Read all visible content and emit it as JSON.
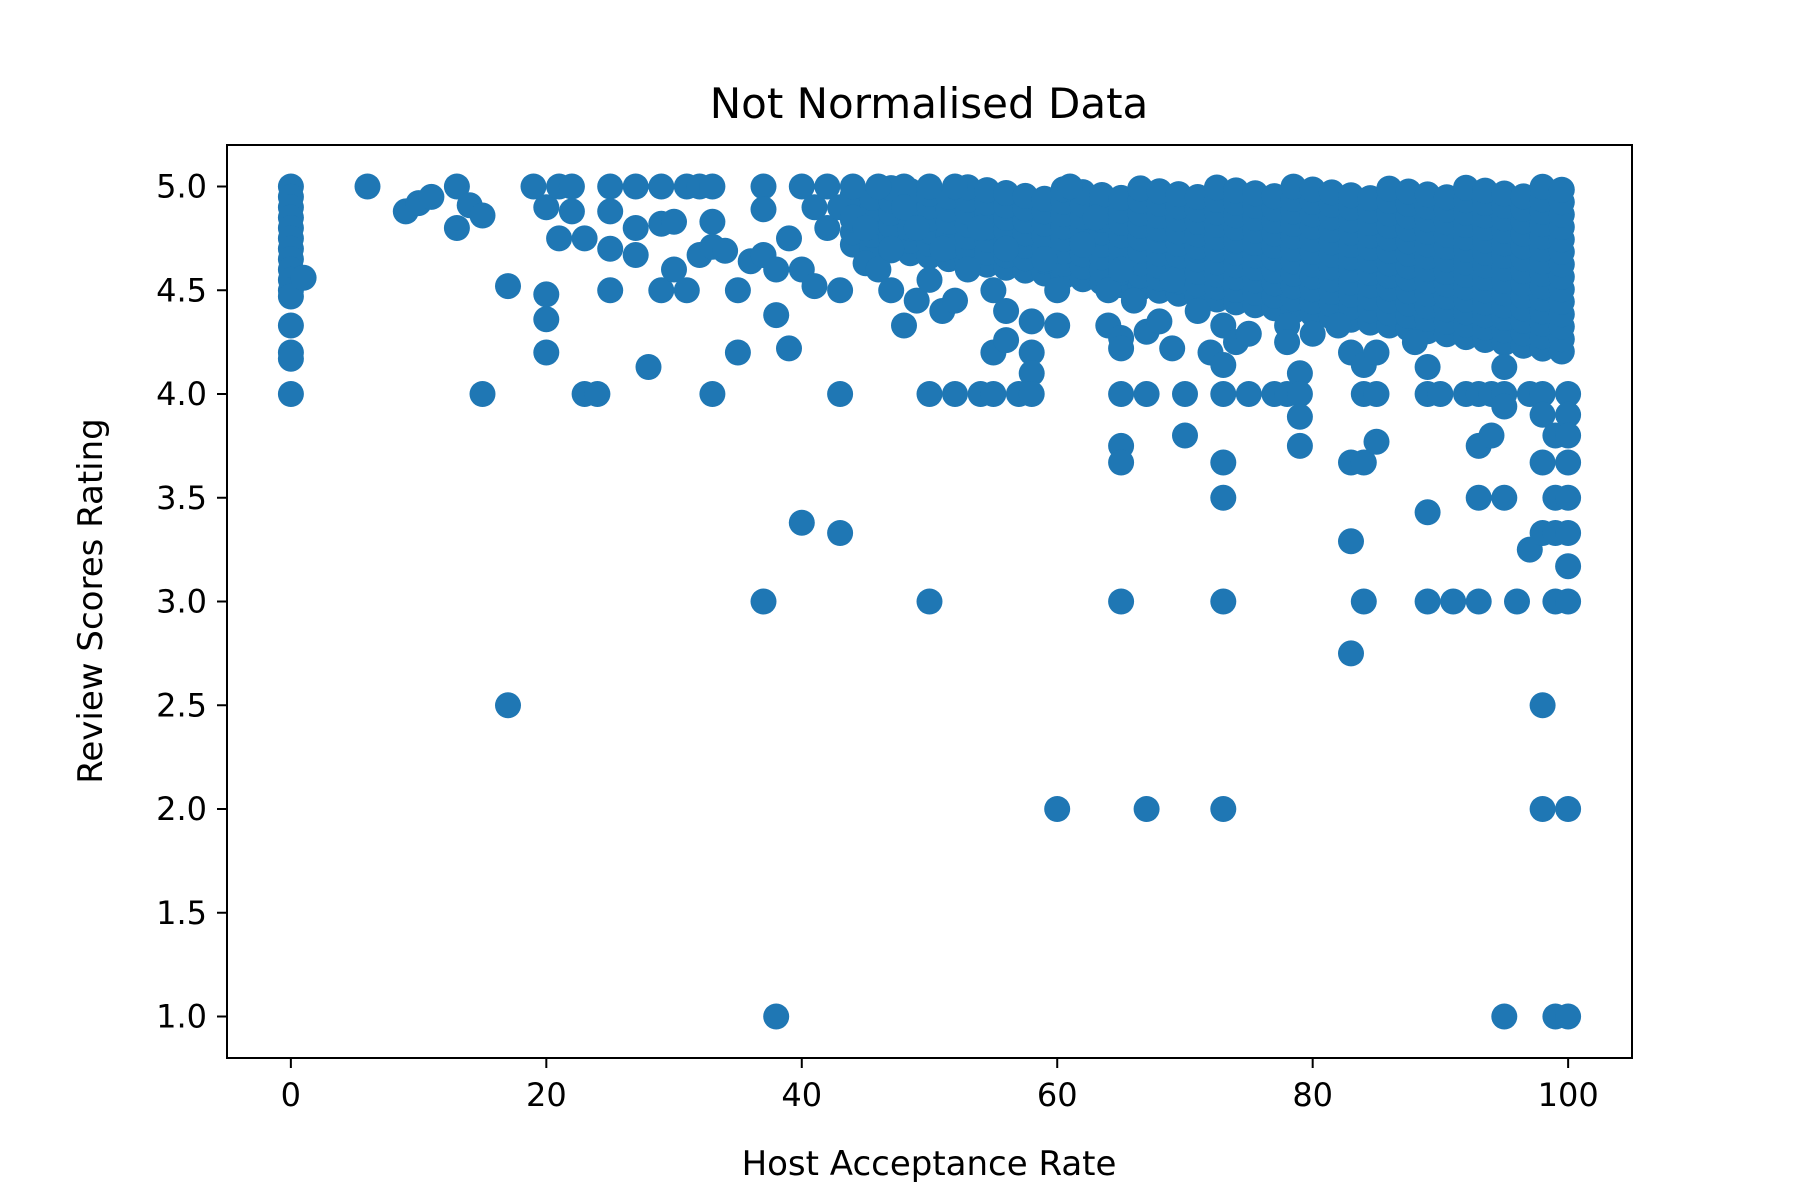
{
  "chart_data": {
    "type": "scatter",
    "title": "Not Normalised Data",
    "xlabel": "Host Acceptance Rate",
    "ylabel": "Review Scores Rating",
    "xlim": [
      -5,
      105
    ],
    "ylim": [
      0.8,
      5.2
    ],
    "xticks": [
      0,
      20,
      40,
      60,
      80,
      100
    ],
    "xtick_labels": [
      "0",
      "20",
      "40",
      "60",
      "80",
      "100"
    ],
    "yticks": [
      1.0,
      1.5,
      2.0,
      2.5,
      3.0,
      3.5,
      4.0,
      4.5,
      5.0
    ],
    "ytick_labels": [
      "1.0",
      "1.5",
      "2.0",
      "2.5",
      "3.0",
      "3.5",
      "4.0",
      "4.5",
      "5.0"
    ],
    "grid": false,
    "legend": "none",
    "marker_color": "#1f77b4",
    "series": [
      {
        "points": [
          [
            0,
            5.0
          ],
          [
            0,
            4.95
          ],
          [
            0,
            4.9
          ],
          [
            0,
            4.85
          ],
          [
            0,
            4.8
          ],
          [
            0,
            4.75
          ],
          [
            0,
            4.7
          ],
          [
            0,
            4.65
          ],
          [
            0,
            4.6
          ],
          [
            0,
            4.55
          ],
          [
            0,
            4.5
          ],
          [
            0,
            4.47
          ],
          [
            0,
            4.33
          ],
          [
            0,
            4.2
          ],
          [
            0,
            4.17
          ],
          [
            0,
            4.0
          ],
          [
            1,
            4.56
          ],
          [
            6,
            5.0
          ],
          [
            9,
            4.88
          ],
          [
            10,
            4.92
          ],
          [
            11,
            4.95
          ],
          [
            13,
            5.0
          ],
          [
            13,
            4.8
          ],
          [
            14,
            4.91
          ],
          [
            15,
            4.86
          ],
          [
            15,
            4.0
          ],
          [
            17,
            4.52
          ],
          [
            17,
            2.5
          ],
          [
            19,
            5.0
          ],
          [
            20,
            4.9
          ],
          [
            20,
            4.48
          ],
          [
            20,
            4.36
          ],
          [
            20,
            4.2
          ],
          [
            21,
            5.0
          ],
          [
            21,
            4.75
          ],
          [
            22,
            5.0
          ],
          [
            22,
            4.88
          ],
          [
            23,
            4.75
          ],
          [
            23,
            4.0
          ],
          [
            24,
            4.0
          ],
          [
            25,
            5.0
          ],
          [
            25,
            4.88
          ],
          [
            25,
            4.7
          ],
          [
            25,
            4.5
          ],
          [
            27,
            5.0
          ],
          [
            27,
            4.8
          ],
          [
            27,
            4.67
          ],
          [
            28,
            4.13
          ],
          [
            29,
            5.0
          ],
          [
            29,
            4.82
          ],
          [
            29,
            4.5
          ],
          [
            30,
            4.6
          ],
          [
            30,
            4.83
          ],
          [
            31,
            5.0
          ],
          [
            31,
            4.5
          ],
          [
            32,
            5.0
          ],
          [
            32,
            4.67
          ],
          [
            33,
            5.0
          ],
          [
            33,
            4.83
          ],
          [
            33,
            4.71
          ],
          [
            33,
            4.0
          ],
          [
            34,
            4.69
          ],
          [
            35,
            4.5
          ],
          [
            35,
            4.2
          ],
          [
            36,
            4.64
          ],
          [
            37,
            5.0
          ],
          [
            37,
            4.89
          ],
          [
            37,
            4.67
          ],
          [
            37,
            3.0
          ],
          [
            38,
            4.6
          ],
          [
            38,
            4.38
          ],
          [
            38,
            1.0
          ],
          [
            39,
            4.75
          ],
          [
            39,
            4.22
          ],
          [
            40,
            5.0
          ],
          [
            40,
            4.6
          ],
          [
            40,
            3.38
          ],
          [
            41,
            4.9
          ],
          [
            41,
            4.52
          ],
          [
            42,
            5.0
          ],
          [
            42,
            4.8
          ],
          [
            43,
            4.9
          ],
          [
            43,
            4.5
          ],
          [
            43,
            4.0
          ],
          [
            43,
            3.33
          ],
          [
            44,
            5.0
          ],
          [
            44,
            4.85
          ],
          [
            45,
            4.63
          ],
          [
            45,
            4.8
          ],
          [
            46,
            5.0
          ],
          [
            46,
            4.6
          ],
          [
            47,
            4.7
          ],
          [
            47,
            4.5
          ],
          [
            48,
            5.0
          ],
          [
            48,
            4.9
          ],
          [
            48,
            4.33
          ],
          [
            49,
            4.45
          ],
          [
            49,
            4.8
          ],
          [
            50,
            5.0
          ],
          [
            50,
            4.55
          ],
          [
            50,
            4.0
          ],
          [
            50,
            3.0
          ],
          [
            51,
            4.4
          ],
          [
            51,
            4.7
          ],
          [
            52,
            5.0
          ],
          [
            52,
            4.45
          ],
          [
            52,
            4.0
          ],
          [
            53,
            4.6
          ],
          [
            54,
            4.0
          ],
          [
            54,
            4.8
          ],
          [
            55,
            4.5
          ],
          [
            55,
            4.2
          ],
          [
            55,
            4.0
          ],
          [
            56,
            4.4
          ],
          [
            56,
            4.26
          ],
          [
            56,
            4.7
          ],
          [
            57,
            4.0
          ],
          [
            58,
            4.2
          ],
          [
            58,
            4.1
          ],
          [
            58,
            4.35
          ],
          [
            58,
            4.0
          ],
          [
            59,
            4.65
          ],
          [
            60,
            4.5
          ],
          [
            60,
            4.33
          ],
          [
            60,
            2.0
          ],
          [
            61,
            5.0
          ],
          [
            62,
            4.72
          ],
          [
            63,
            4.85
          ],
          [
            64,
            4.5
          ],
          [
            64,
            4.33
          ],
          [
            65,
            4.6
          ],
          [
            65,
            4.27
          ],
          [
            65,
            4.22
          ],
          [
            65,
            4.0
          ],
          [
            65,
            3.75
          ],
          [
            65,
            3.67
          ],
          [
            65,
            3.0
          ],
          [
            66,
            4.45
          ],
          [
            67,
            4.3
          ],
          [
            67,
            4.0
          ],
          [
            67,
            2.0
          ],
          [
            68,
            4.35
          ],
          [
            69,
            4.55
          ],
          [
            69,
            4.22
          ],
          [
            70,
            4.0
          ],
          [
            70,
            3.8
          ],
          [
            71,
            4.4
          ],
          [
            72,
            4.2
          ],
          [
            73,
            4.33
          ],
          [
            73,
            4.14
          ],
          [
            73,
            4.0
          ],
          [
            73,
            3.67
          ],
          [
            73,
            3.5
          ],
          [
            73,
            3.0
          ],
          [
            73,
            2.0
          ],
          [
            74,
            4.25
          ],
          [
            75,
            4.29
          ],
          [
            75,
            4.0
          ],
          [
            77,
            4.0
          ],
          [
            78,
            4.33
          ],
          [
            78,
            4.25
          ],
          [
            78,
            4.0
          ],
          [
            79,
            4.1
          ],
          [
            79,
            4.0
          ],
          [
            79,
            3.89
          ],
          [
            79,
            3.75
          ],
          [
            80,
            4.29
          ],
          [
            82,
            4.33
          ],
          [
            83,
            4.2
          ],
          [
            83,
            3.67
          ],
          [
            83,
            3.29
          ],
          [
            83,
            2.75
          ],
          [
            84,
            4.0
          ],
          [
            84,
            3.67
          ],
          [
            84,
            3.0
          ],
          [
            84,
            4.14
          ],
          [
            85,
            4.2
          ],
          [
            85,
            4.0
          ],
          [
            85,
            3.77
          ],
          [
            88,
            4.25
          ],
          [
            89,
            4.13
          ],
          [
            89,
            4.0
          ],
          [
            89,
            3.43
          ],
          [
            89,
            3.0
          ],
          [
            90,
            4.0
          ],
          [
            91,
            3.0
          ],
          [
            92,
            4.0
          ],
          [
            93,
            4.0
          ],
          [
            93,
            3.75
          ],
          [
            93,
            3.5
          ],
          [
            93,
            3.0
          ],
          [
            94,
            3.8
          ],
          [
            94,
            4.0
          ],
          [
            95,
            4.0
          ],
          [
            95,
            3.94
          ],
          [
            95,
            3.5
          ],
          [
            95,
            4.13
          ],
          [
            95,
            1.0
          ],
          [
            96,
            3.0
          ],
          [
            97,
            4.0
          ],
          [
            97,
            3.25
          ],
          [
            98,
            4.0
          ],
          [
            98,
            3.9
          ],
          [
            98,
            3.67
          ],
          [
            98,
            3.33
          ],
          [
            98,
            2.5
          ],
          [
            98,
            2.0
          ],
          [
            99,
            3.5
          ],
          [
            99,
            3.33
          ],
          [
            99,
            3.0
          ],
          [
            99,
            3.8
          ],
          [
            99,
            1.0
          ],
          [
            100,
            4.0
          ],
          [
            100,
            3.9
          ],
          [
            100,
            3.8
          ],
          [
            100,
            3.67
          ],
          [
            100,
            3.5
          ],
          [
            100,
            3.33
          ],
          [
            100,
            3.17
          ],
          [
            100,
            3.0
          ],
          [
            100,
            2.0
          ],
          [
            100,
            1.0
          ]
        ]
      }
    ],
    "dense_region": {
      "x_range": [
        44,
        100
      ],
      "y_range": [
        4.2,
        5.0
      ],
      "x_step": 1.5,
      "y_step": 0.06
    }
  }
}
